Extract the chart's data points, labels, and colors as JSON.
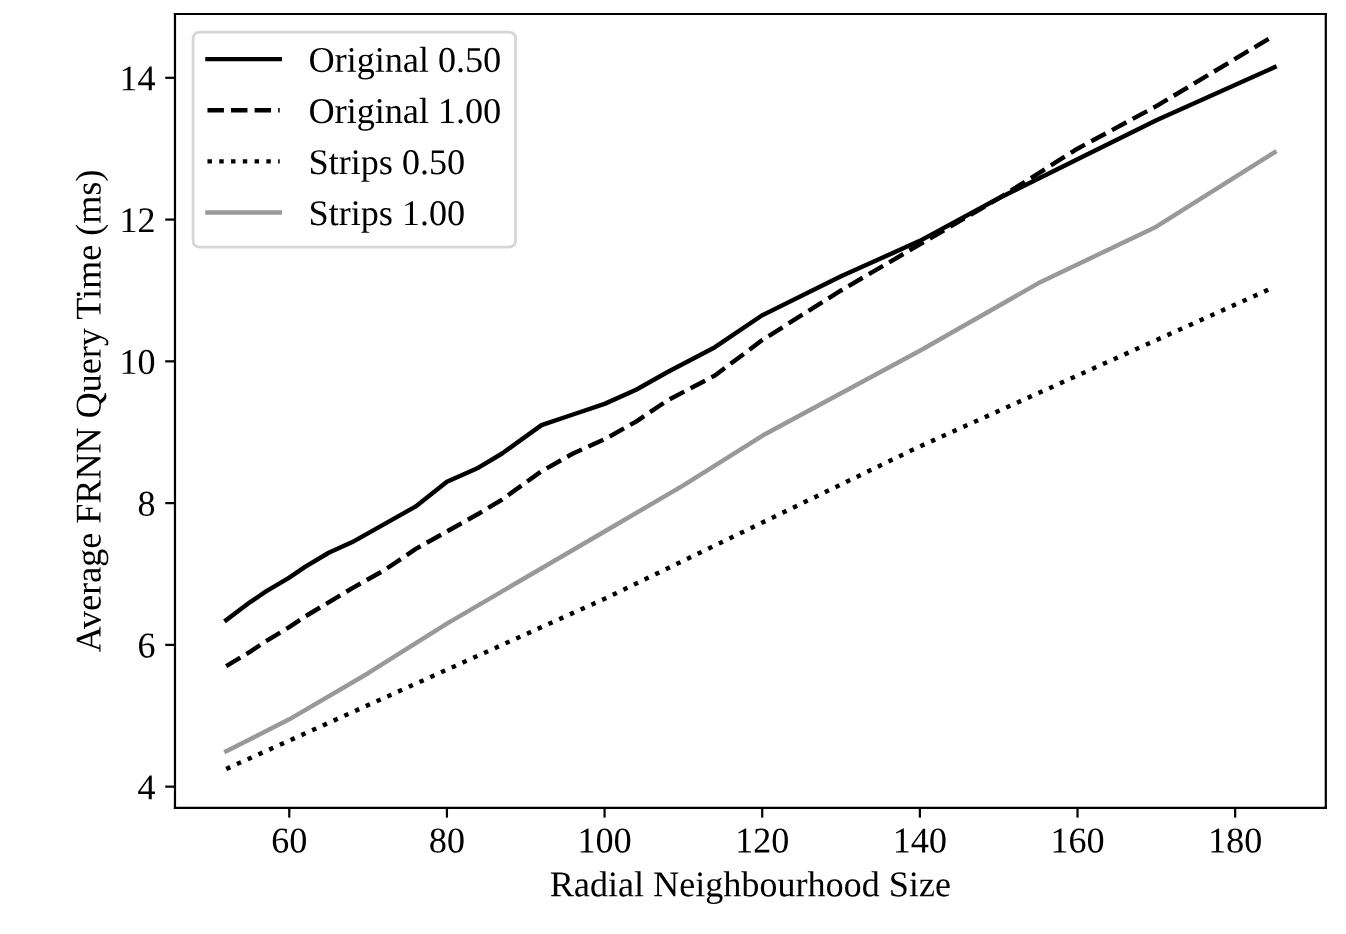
{
  "chart_data": {
    "type": "line",
    "xlabel": "Radial Neighbourhood Size",
    "ylabel": "Average FRNN Query Time (ms)",
    "xlim": [
      45.5,
      191.5
    ],
    "xticks": [
      60,
      80,
      100,
      120,
      140,
      160,
      180
    ],
    "ylim": [
      3.7,
      14.9
    ],
    "yticks": [
      4,
      6,
      8,
      10,
      12,
      14
    ],
    "grid": false,
    "legend": "top left",
    "marker": "none",
    "series": [
      {
        "name": "Original 0.50",
        "color": "#000000",
        "line_style": "solid",
        "x": [
          52,
          55,
          57,
          60,
          62,
          65,
          68,
          72,
          76,
          80,
          84,
          87,
          92,
          96,
          100,
          104,
          108,
          114,
          120,
          130,
          140,
          150,
          160,
          170,
          185
        ],
        "values": [
          6.35,
          6.6,
          6.75,
          6.95,
          7.1,
          7.3,
          7.45,
          7.7,
          7.95,
          8.3,
          8.5,
          8.7,
          9.1,
          9.25,
          9.4,
          9.6,
          9.85,
          10.2,
          10.65,
          11.2,
          11.7,
          12.3,
          12.85,
          13.4,
          14.15
        ]
      },
      {
        "name": "Original 1.00",
        "color": "#000000",
        "line_style": "dashed",
        "x": [
          52,
          55,
          57,
          60,
          62,
          65,
          68,
          72,
          76,
          80,
          84,
          87,
          92,
          96,
          100,
          104,
          108,
          114,
          120,
          130,
          140,
          150,
          160,
          170,
          185
        ],
        "values": [
          5.7,
          5.9,
          6.05,
          6.25,
          6.4,
          6.6,
          6.8,
          7.05,
          7.35,
          7.6,
          7.85,
          8.05,
          8.45,
          8.7,
          8.9,
          9.15,
          9.45,
          9.8,
          10.3,
          11.0,
          11.65,
          12.3,
          13.0,
          13.6,
          14.6
        ]
      },
      {
        "name": "Strips 0.50",
        "color": "#000000",
        "line_style": "dotted",
        "x": [
          52,
          100,
          140,
          185
        ],
        "values": [
          4.25,
          6.65,
          8.8,
          11.05
        ]
      },
      {
        "name": "Strips 1.00",
        "color": "#999999",
        "line_style": "solid",
        "x": [
          52,
          60,
          70,
          80,
          90,
          100,
          110,
          120,
          130,
          140,
          155,
          170,
          185
        ],
        "values": [
          4.5,
          4.95,
          5.6,
          6.3,
          6.95,
          7.6,
          8.25,
          8.95,
          9.55,
          10.15,
          11.1,
          11.9,
          12.95
        ]
      }
    ]
  }
}
